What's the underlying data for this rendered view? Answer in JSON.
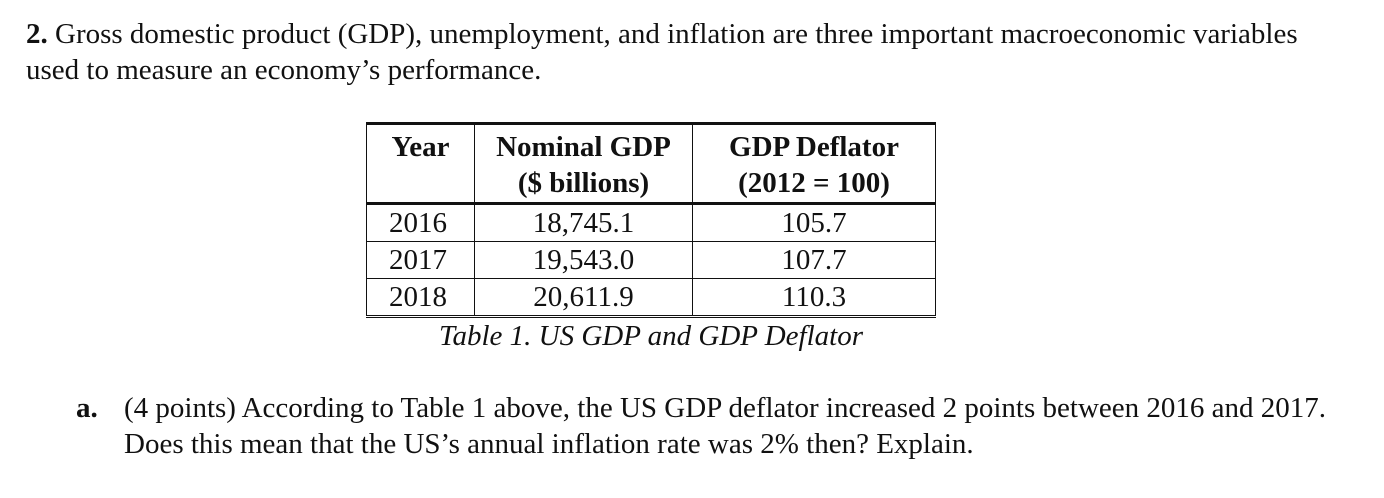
{
  "question": {
    "number": "2.",
    "text": "Gross domestic product (GDP), unemployment, and inflation are three important macroeconomic variables used to measure an economy’s performance."
  },
  "table": {
    "headers": {
      "year": "Year",
      "gdp_line1": "Nominal GDP",
      "gdp_line2": "($ billions)",
      "deflator_line1": "GDP Deflator",
      "deflator_line2": "(2012 = 100)"
    },
    "rows": [
      {
        "year": "2016",
        "gdp": "18,745.1",
        "deflator": "105.7"
      },
      {
        "year": "2017",
        "gdp": "19,543.0",
        "deflator": "107.7"
      },
      {
        "year": "2018",
        "gdp": "20,611.9",
        "deflator": "110.3"
      }
    ],
    "caption": "Table 1. US GDP and GDP Deflator"
  },
  "part_a": {
    "letter": "a.",
    "text": "(4 points) According to Table 1 above, the US GDP deflator increased 2 points between 2016 and 2017. Does this mean that the US’s annual inflation rate was 2% then? Explain."
  }
}
